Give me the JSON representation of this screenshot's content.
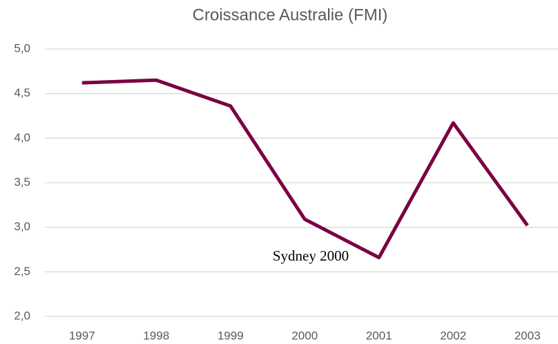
{
  "chart_data": {
    "type": "line",
    "title": "Croissance Australie (FMI)",
    "categories": [
      "1997",
      "1998",
      "1999",
      "2000",
      "2001",
      "2002",
      "2003"
    ],
    "series": [
      {
        "name": "Croissance",
        "color": "#7b0041",
        "values": [
          4.62,
          4.65,
          4.36,
          3.09,
          2.66,
          4.17,
          3.02
        ]
      }
    ],
    "ylim": [
      2.0,
      5.0
    ],
    "yticks": [
      {
        "value": 2.0,
        "label": "2,0"
      },
      {
        "value": 2.5,
        "label": "2,5"
      },
      {
        "value": 3.0,
        "label": "3,0"
      },
      {
        "value": 3.5,
        "label": "3,5"
      },
      {
        "value": 4.0,
        "label": "4,0"
      },
      {
        "value": 4.5,
        "label": "4,5"
      },
      {
        "value": 5.0,
        "label": "5,0"
      }
    ],
    "grid": true,
    "legend": false,
    "annotation": "Sydney 2000"
  }
}
